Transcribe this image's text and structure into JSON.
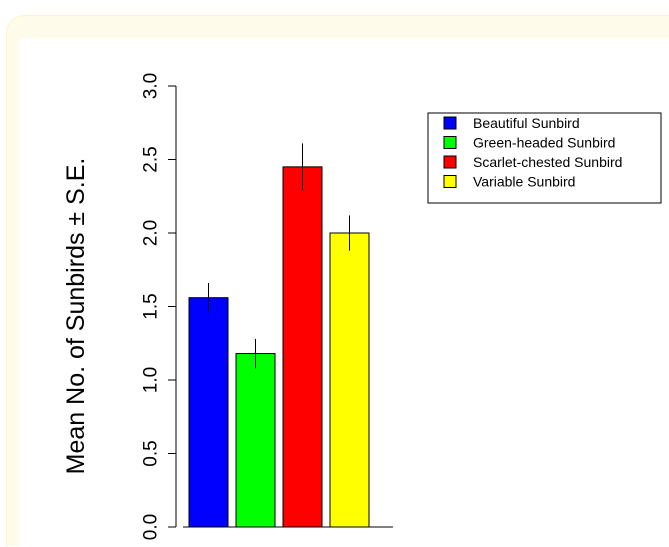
{
  "chart_data": {
    "type": "bar",
    "title": "",
    "xlabel": "",
    "ylabel": "Mean No. of Sunbirds ± S.E.",
    "ylim": [
      0,
      3.0
    ],
    "yticks": [
      "0.0",
      "0.5",
      "1.0",
      "1.5",
      "2.0",
      "2.5",
      "3.0"
    ],
    "grid": false,
    "legend_position": "top-right",
    "series": [
      {
        "name": "Beautiful Sunbird",
        "value": 1.56,
        "se": 0.1,
        "color": "#0000ff"
      },
      {
        "name": "Green-headed Sunbird",
        "value": 1.18,
        "se": 0.1,
        "color": "#00ff00"
      },
      {
        "name": "Scarlet-chested Sunbird",
        "value": 2.45,
        "se": 0.16,
        "color": "#ff0000"
      },
      {
        "name": "Variable Sunbird",
        "value": 2.0,
        "se": 0.12,
        "color": "#ffff00"
      }
    ]
  }
}
